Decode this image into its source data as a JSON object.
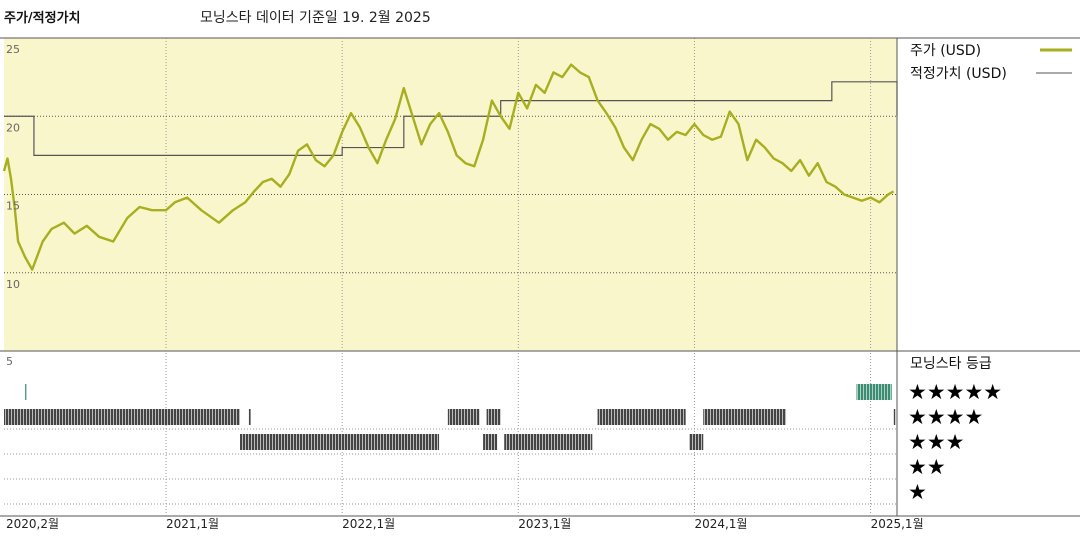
{
  "chart_data": {
    "type": "line",
    "title": "주가/적정가치",
    "subtitle": "모닝스타 데이터 기준일 19. 2월 2025",
    "price_axis": {
      "ticks": [
        25,
        20,
        15,
        10
      ],
      "bottom_tick": 5,
      "ylim": [
        5,
        25
      ]
    },
    "x_ticks": [
      "2020,2월",
      "2021,1월",
      "2022,1월",
      "2023,1월",
      "2024,1월",
      "2025,1월"
    ],
    "x_tick_values": [
      2020.08,
      2021.0,
      2022.0,
      2023.0,
      2024.0,
      2025.0
    ],
    "xlim": [
      2020.08,
      2025.15
    ],
    "series": [
      {
        "name": "주가 (USD)",
        "color": "#a7ae1f",
        "x": [
          2020.08,
          2020.1,
          2020.12,
          2020.14,
          2020.16,
          2020.2,
          2020.24,
          2020.3,
          2020.35,
          2020.42,
          2020.48,
          2020.55,
          2020.62,
          2020.7,
          2020.78,
          2020.85,
          2020.92,
          2021.0,
          2021.05,
          2021.12,
          2021.2,
          2021.3,
          2021.38,
          2021.45,
          2021.5,
          2021.55,
          2021.6,
          2021.65,
          2021.7,
          2021.75,
          2021.8,
          2021.85,
          2021.9,
          2021.95,
          2022.0,
          2022.05,
          2022.1,
          2022.15,
          2022.2,
          2022.25,
          2022.3,
          2022.35,
          2022.4,
          2022.45,
          2022.5,
          2022.55,
          2022.6,
          2022.65,
          2022.7,
          2022.75,
          2022.8,
          2022.85,
          2022.9,
          2022.95,
          2023.0,
          2023.05,
          2023.1,
          2023.15,
          2023.2,
          2023.25,
          2023.3,
          2023.35,
          2023.4,
          2023.45,
          2023.5,
          2023.55,
          2023.6,
          2023.65,
          2023.7,
          2023.75,
          2023.8,
          2023.85,
          2023.9,
          2023.95,
          2024.0,
          2024.05,
          2024.1,
          2024.15,
          2024.2,
          2024.25,
          2024.3,
          2024.35,
          2024.4,
          2024.45,
          2024.5,
          2024.55,
          2024.6,
          2024.65,
          2024.7,
          2024.75,
          2024.8,
          2024.85,
          2024.9,
          2024.95,
          2025.0,
          2025.05,
          2025.1,
          2025.13
        ],
        "y": [
          16.5,
          17.3,
          16.0,
          14.2,
          12.0,
          11.0,
          10.2,
          12.0,
          12.8,
          13.2,
          12.5,
          13.0,
          12.3,
          12.0,
          13.5,
          14.2,
          14.0,
          14.0,
          14.5,
          14.8,
          14.0,
          13.2,
          14.0,
          14.5,
          15.2,
          15.8,
          16.0,
          15.5,
          16.3,
          17.8,
          18.2,
          17.2,
          16.8,
          17.5,
          19.0,
          20.2,
          19.3,
          18.0,
          17.0,
          18.5,
          19.8,
          21.8,
          20.0,
          18.2,
          19.5,
          20.2,
          19.0,
          17.5,
          17.0,
          16.8,
          18.5,
          21.0,
          20.0,
          19.2,
          21.5,
          20.5,
          22.0,
          21.5,
          22.8,
          22.5,
          23.3,
          22.8,
          22.5,
          21.0,
          20.2,
          19.3,
          18.0,
          17.2,
          18.5,
          19.5,
          19.2,
          18.5,
          19.0,
          18.8,
          19.5,
          18.8,
          18.5,
          18.7,
          20.3,
          19.5,
          17.2,
          18.5,
          18.0,
          17.3,
          17.0,
          16.5,
          17.2,
          16.2,
          17.0,
          15.8,
          15.5,
          15.0,
          14.8,
          14.6,
          14.8,
          14.5,
          15.0,
          15.2
        ]
      },
      {
        "name": "적정가치 (USD)",
        "color": "#555555",
        "step": true,
        "x": [
          2020.08,
          2020.25,
          2021.78,
          2022.0,
          2022.35,
          2022.85,
          2022.9,
          2024.2,
          2024.68,
          2024.78,
          2025.15
        ],
        "y": [
          20.0,
          17.5,
          17.5,
          18.0,
          20.0,
          20.0,
          21.0,
          21.0,
          21.0,
          22.2,
          20.0
        ]
      }
    ],
    "rating_legend": {
      "title": "모닝스타 등급",
      "rows": [
        "★★★★★",
        "★★★★",
        "★★★",
        "★★",
        "★"
      ]
    },
    "ratings": {
      "5": {
        "color": "#3f8a72",
        "spans": [
          [
            2020.2,
            2020.21
          ],
          [
            2024.92,
            2025.12
          ]
        ]
      },
      "4": {
        "color": "#444444",
        "spans": [
          [
            2020.08,
            2021.42
          ],
          [
            2021.47,
            2021.48
          ],
          [
            2022.6,
            2022.78
          ],
          [
            2022.82,
            2022.9
          ],
          [
            2023.45,
            2023.95
          ],
          [
            2024.05,
            2024.52
          ],
          [
            2025.13,
            2025.14
          ]
        ]
      },
      "3": {
        "color": "#444444",
        "spans": [
          [
            2021.42,
            2022.55
          ],
          [
            2022.8,
            2022.88
          ],
          [
            2022.92,
            2023.42
          ],
          [
            2023.97,
            2024.05
          ]
        ]
      }
    }
  }
}
